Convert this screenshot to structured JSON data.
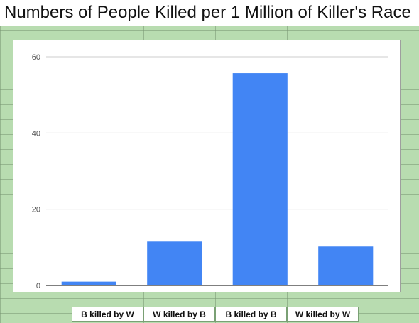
{
  "title": "Numbers of People Killed per 1 Million of Killer's Race",
  "colors": {
    "bar": "#4285f4",
    "gridline": "#cccccc",
    "axis": "#333333",
    "tick_text": "#555555",
    "sheet_background": "#b8dcb0"
  },
  "chart_data": {
    "type": "bar",
    "title": "Numbers of People Killed per 1 Million of Killer's Race",
    "categories": [
      "B killed by W",
      "W killed by B",
      "B killed by B",
      "W killed by W"
    ],
    "values": [
      1.0,
      11.5,
      55.7,
      10.2
    ],
    "ylim": [
      0,
      60
    ],
    "yticks": [
      0,
      20,
      40,
      60
    ],
    "ytick_labels": [
      "0",
      "20",
      "40",
      "60"
    ],
    "xlabel": "",
    "ylabel": "",
    "grid": true,
    "legend": false
  }
}
